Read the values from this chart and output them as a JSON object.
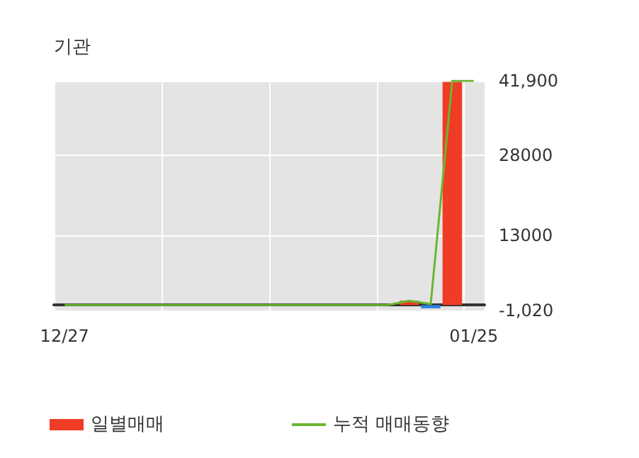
{
  "chart_data": {
    "type": "bar",
    "title": "기관",
    "categories": [
      "12/27",
      null,
      null,
      null,
      null,
      null,
      null,
      null,
      null,
      null,
      null,
      null,
      null,
      null,
      null,
      null,
      null,
      null,
      null,
      "01/25"
    ],
    "series": [
      {
        "name": "일별매매",
        "colors": [
          "#f03c24",
          "#f03c24",
          "#f03c24",
          "#f03c24",
          "#f03c24",
          "#f03c24",
          "#f03c24",
          "#f03c24",
          "#f03c24",
          "#f03c24",
          "#f03c24",
          "#f03c24",
          "#f03c24",
          "#f03c24",
          "#f03c24",
          "#f03c24",
          "#f03c24",
          "#2f7fe0",
          "#f03c24",
          "#f03c24"
        ],
        "values": [
          0,
          0,
          0,
          0,
          0,
          0,
          0,
          0,
          0,
          0,
          0,
          0,
          0,
          0,
          0,
          0,
          800,
          -600,
          41700,
          0
        ]
      },
      {
        "name": "누적 매매동향",
        "type": "line",
        "color": "#6ab630",
        "values": [
          0,
          0,
          0,
          0,
          0,
          0,
          0,
          0,
          0,
          0,
          0,
          0,
          0,
          0,
          0,
          0,
          800,
          200,
          41900,
          41900
        ]
      }
    ],
    "ylim": [
      -1020,
      41900
    ],
    "yticks": [
      {
        "value": -1020,
        "label": "-1,020"
      },
      {
        "value": 13000,
        "label": "13000"
      },
      {
        "value": 28000,
        "label": "28000"
      },
      {
        "value": 41900,
        "label": "41,900"
      }
    ],
    "grid": true,
    "legend": "bottom",
    "marker": "none"
  }
}
